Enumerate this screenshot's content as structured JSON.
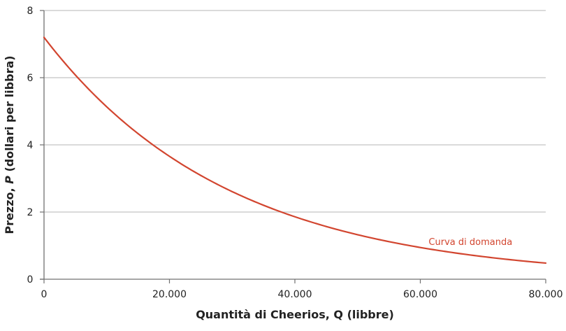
{
  "chart_data": {
    "type": "line",
    "title": "",
    "xlabel": "Quantità di Cheerios, Q (libbre)",
    "ylabel": "Prezzo, P (dollari per libbra)",
    "ylabel_parts": {
      "before": "Prezzo, ",
      "italic": "P",
      "after": " (dollari per libbra)"
    },
    "xlim": [
      0,
      80000
    ],
    "ylim": [
      0,
      8
    ],
    "x_ticks": [
      0,
      20000,
      40000,
      60000,
      80000
    ],
    "x_tick_labels": [
      "0",
      "20.000",
      "40.000",
      "60.000",
      "80.000"
    ],
    "y_ticks": [
      0,
      2,
      4,
      6,
      8
    ],
    "y_tick_labels": [
      "0",
      "2",
      "4",
      "6",
      "8"
    ],
    "grid": {
      "horizontal": true,
      "vertical": false
    },
    "series": [
      {
        "name": "Curva di domanda",
        "color": "#d2452f",
        "x": [
          0,
          5000,
          10000,
          16500,
          20000,
          25000,
          30000,
          36200,
          40000,
          45000,
          50000,
          55000,
          60000,
          65000,
          70000,
          75000,
          80000
        ],
        "values": [
          7.2,
          6.02,
          5.04,
          4.0,
          3.53,
          2.95,
          2.47,
          2.0,
          1.73,
          1.45,
          1.21,
          1.02,
          0.85,
          0.71,
          0.62,
          0.54,
          0.48
        ]
      }
    ],
    "annotations": [
      {
        "text": "Curva di domanda",
        "x": 68000,
        "y": 1.13,
        "color": "#d2452f"
      }
    ]
  }
}
